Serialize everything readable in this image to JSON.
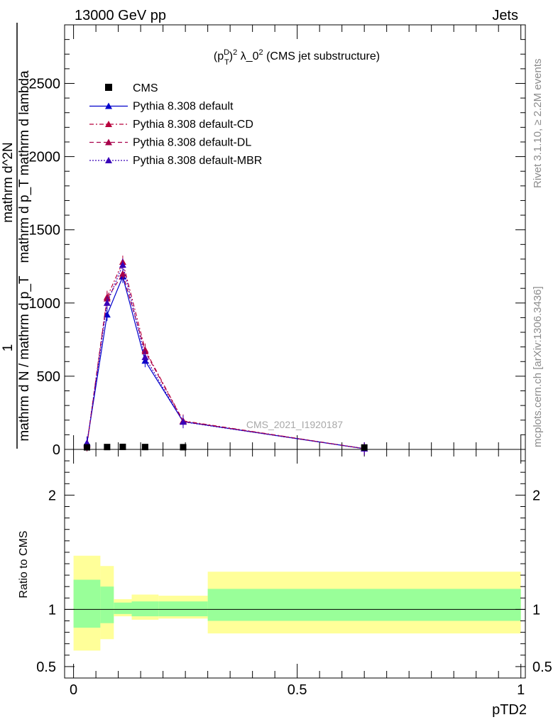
{
  "header": {
    "left": "13000 GeV pp",
    "right": "Jets"
  },
  "side_labels": {
    "rivet": "Rivet 3.1.10, ≥ 2.2M events",
    "mcplots": "mcplots.cern.ch [arXiv:1306.3436]"
  },
  "chart_data": {
    "type": "line",
    "title": "(p_T^D)^2 λ_0^2 (CMS jet substructure)",
    "watermark": "CMS_2021_I1920187",
    "xlabel": "pTD2",
    "ylabel": {
      "one": "1",
      "denominator": "mathrm d N / mathrm d p_T",
      "numerator": "mathrm d^2N",
      "numerator_denom": "mathrm d p_T mathrm d lambda"
    },
    "ratio_ylabel": "Ratio to CMS",
    "xlim": [
      0,
      1
    ],
    "main_ylim": [
      0,
      2900
    ],
    "main_yticks": [
      0,
      500,
      1000,
      1500,
      2000,
      2500
    ],
    "main_yticklabels": [
      "0",
      "500",
      "1000",
      "1500",
      "2000",
      "2500"
    ],
    "ratio_ylim": [
      0.4,
      2.4
    ],
    "ratio_yticks": [
      0.5,
      1,
      2
    ],
    "ratio_yticklabels": [
      "0.5",
      "1",
      "2"
    ],
    "xticks": [
      0,
      0.5,
      1
    ],
    "xticklabels": [
      "0",
      "0.5",
      "1"
    ],
    "legend_position": "top-left",
    "cms": {
      "name": "CMS",
      "x": [
        0.03,
        0.075,
        0.11,
        0.16,
        0.245,
        0.65
      ],
      "y": [
        2,
        4,
        5,
        4,
        3,
        1
      ]
    },
    "series": [
      {
        "name": "Pythia 8.308 default",
        "color": "#0000cc",
        "dash": "",
        "x": [
          0.03,
          0.075,
          0.11,
          0.16,
          0.245,
          0.65
        ],
        "y": [
          45,
          920,
          1180,
          605,
          190,
          5
        ]
      },
      {
        "name": "Pythia 8.308 default-CD",
        "color": "#b8003c",
        "dash": "6,3,2,3",
        "x": [
          0.03,
          0.075,
          0.11,
          0.16,
          0.245,
          0.65
        ],
        "y": [
          35,
          1040,
          1280,
          680,
          195,
          5
        ]
      },
      {
        "name": "Pythia 8.308 default-DL",
        "color": "#a8004a",
        "dash": "6,4",
        "x": [
          0.03,
          0.075,
          0.11,
          0.16,
          0.245,
          0.65
        ],
        "y": [
          30,
          1030,
          1200,
          670,
          192,
          5
        ]
      },
      {
        "name": "Pythia 8.308 default-MBR",
        "color": "#3a00b8",
        "dash": "2,2",
        "x": [
          0.03,
          0.075,
          0.11,
          0.16,
          0.245,
          0.65
        ],
        "y": [
          40,
          1000,
          1260,
          630,
          188,
          5
        ]
      }
    ],
    "ratio_bands": [
      {
        "x0": 0.0,
        "x1": 0.06,
        "yellow": [
          0.64,
          1.47
        ],
        "green": [
          0.84,
          1.26
        ]
      },
      {
        "x0": 0.06,
        "x1": 0.09,
        "yellow": [
          0.74,
          1.38
        ],
        "green": [
          0.88,
          1.2
        ]
      },
      {
        "x0": 0.09,
        "x1": 0.13,
        "yellow": [
          0.94,
          1.09
        ],
        "green": [
          0.96,
          1.06
        ]
      },
      {
        "x0": 0.13,
        "x1": 0.19,
        "yellow": [
          0.91,
          1.13
        ],
        "green": [
          0.94,
          1.07
        ]
      },
      {
        "x0": 0.19,
        "x1": 0.3,
        "yellow": [
          0.92,
          1.12
        ],
        "green": [
          0.94,
          1.07
        ]
      },
      {
        "x0": 0.3,
        "x1": 1.0,
        "yellow": [
          0.79,
          1.33
        ],
        "green": [
          0.9,
          1.18
        ]
      }
    ]
  }
}
